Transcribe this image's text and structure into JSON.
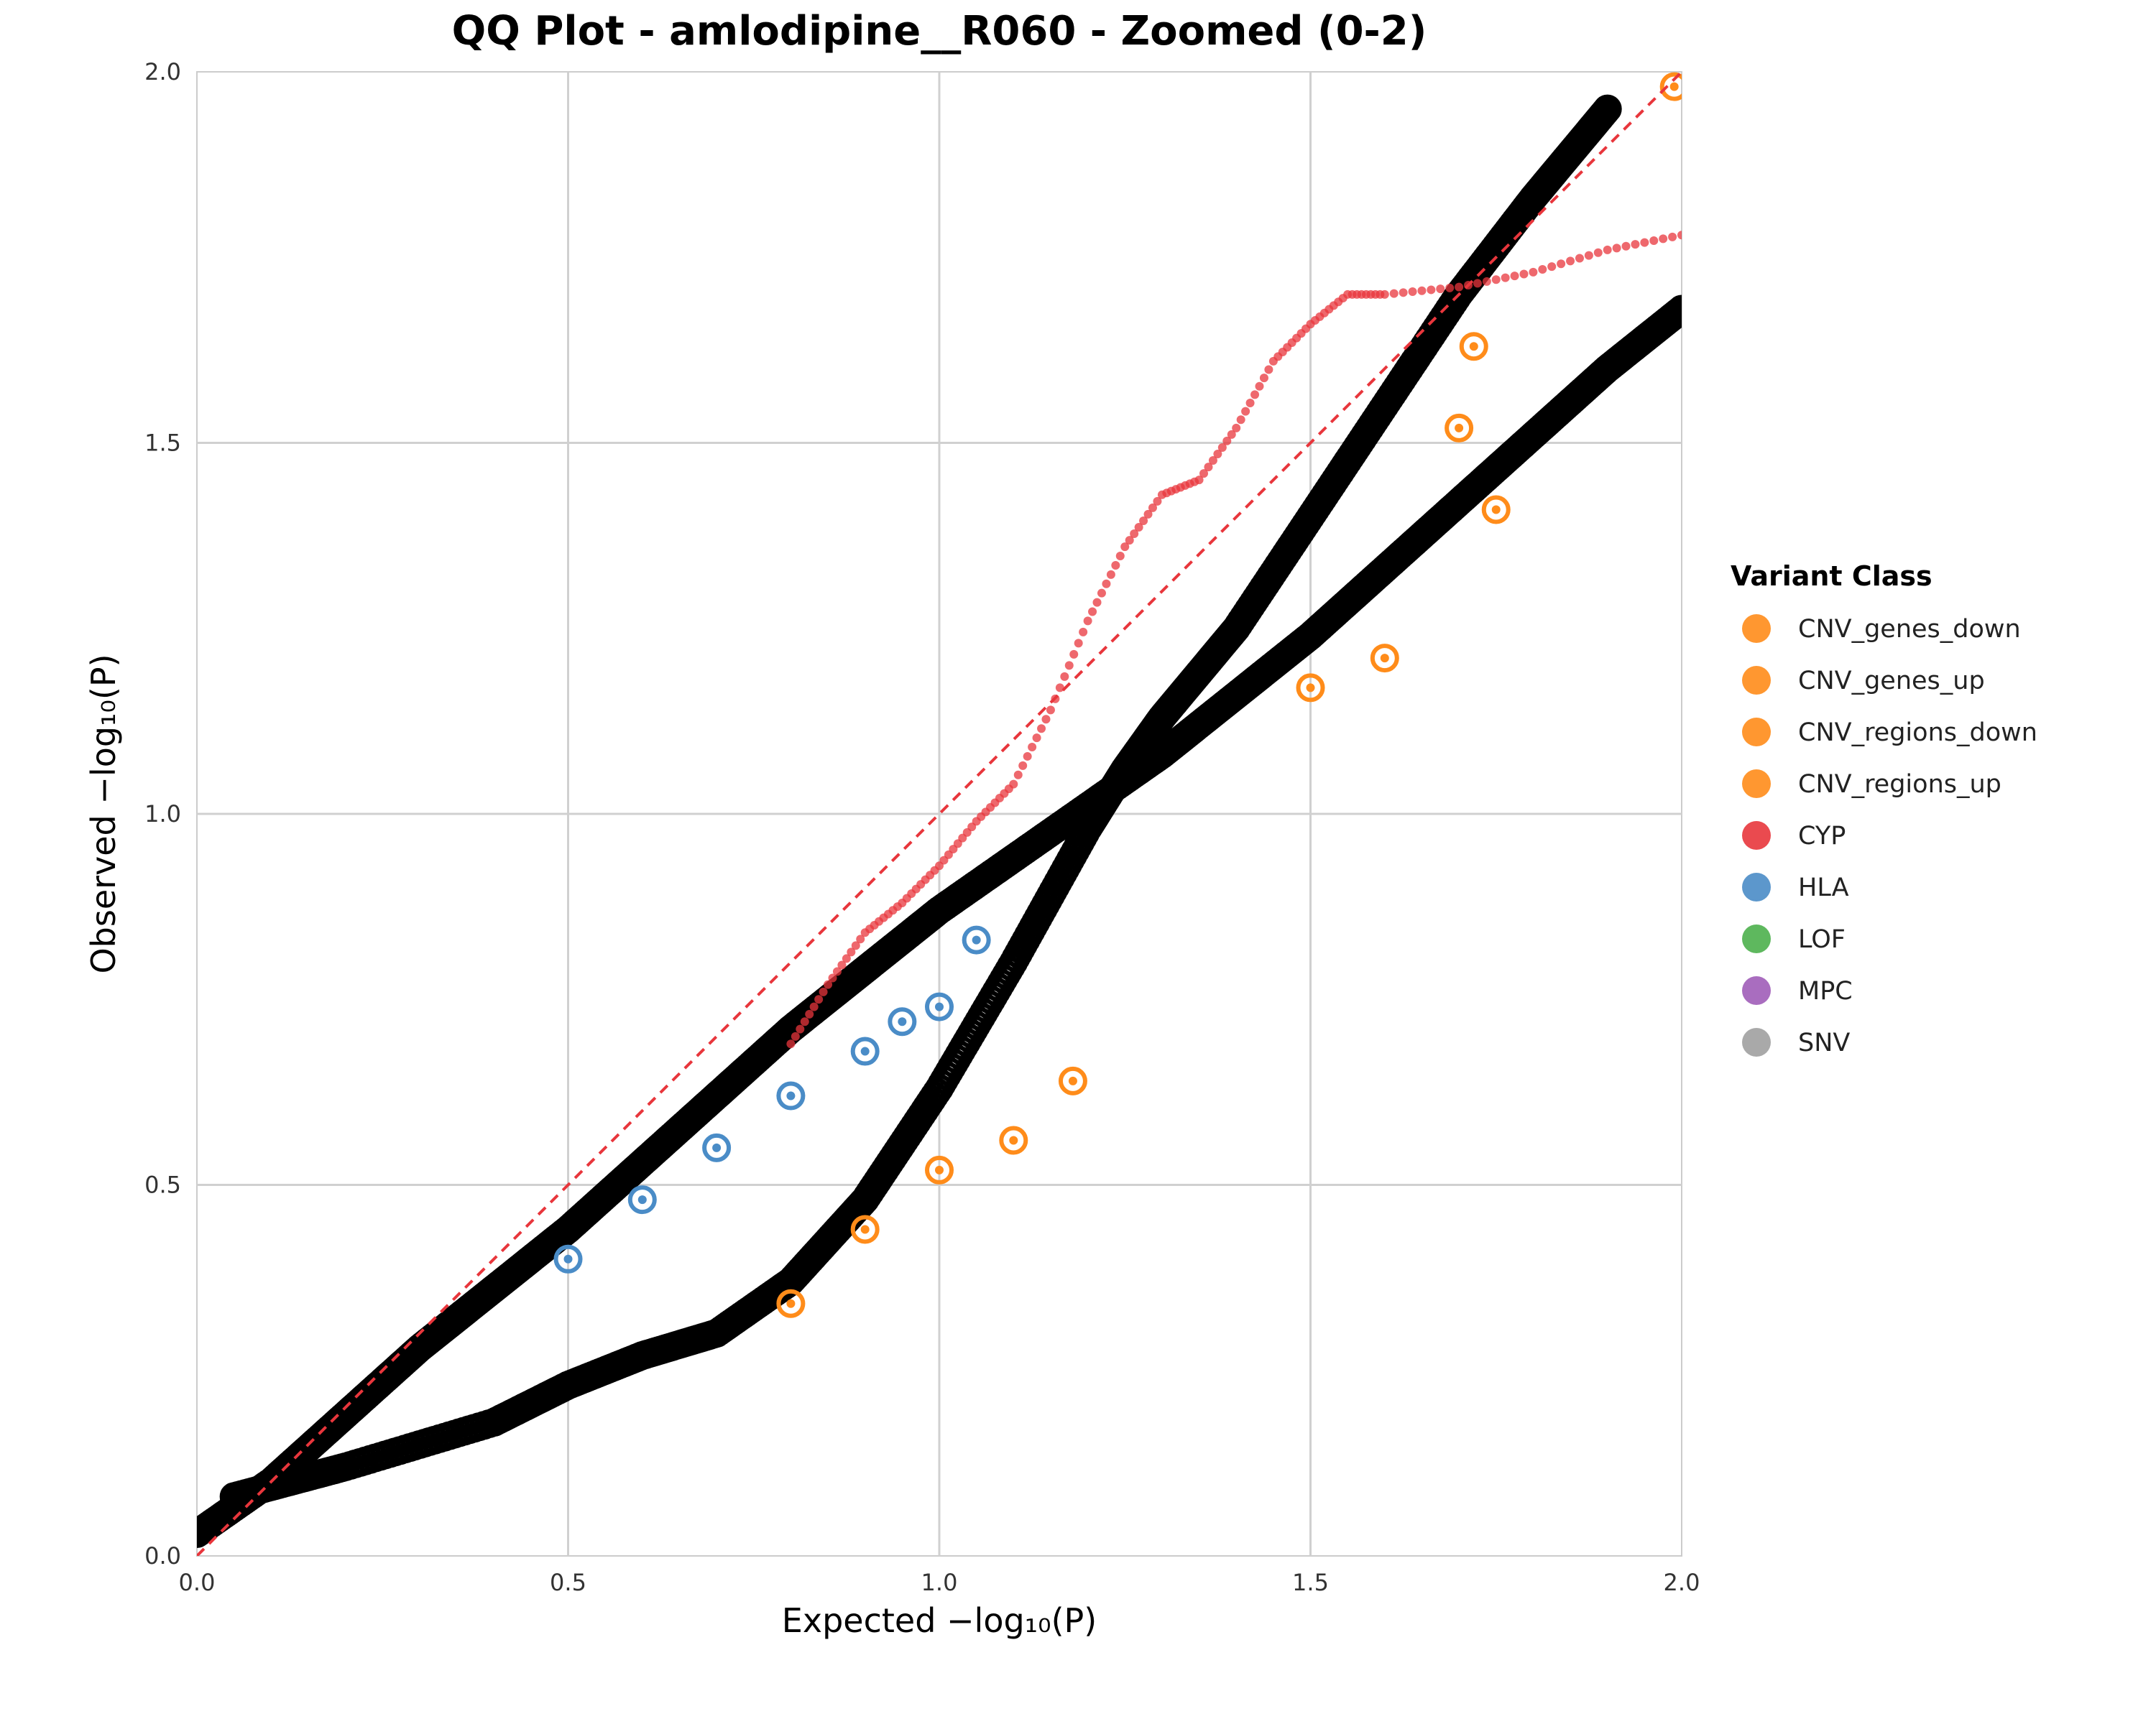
{
  "chart_data": {
    "type": "scatter",
    "title": "QQ Plot - amlodipine__R060 - Zoomed (0-2)",
    "xlabel": "Expected −log₁₀(P)",
    "ylabel": "Observed −log₁₀(P)",
    "xlim": [
      0,
      2
    ],
    "ylim": [
      0,
      2
    ],
    "x_ticks": [
      "0.0",
      "0.5",
      "1.0",
      "1.5",
      "2.0"
    ],
    "y_ticks": [
      "0.0",
      "0.5",
      "1.0",
      "1.5",
      "2.0"
    ],
    "grid": true,
    "reference_line": {
      "slope": 1,
      "color": "#e8363c",
      "style": "dashed"
    },
    "legend": {
      "title": "Variant Class",
      "placement": "right",
      "entries": [
        {
          "label": "CNV_genes_down",
          "color": "#ff8c1a"
        },
        {
          "label": "CNV_genes_up",
          "color": "#ff8c1a"
        },
        {
          "label": "CNV_regions_down",
          "color": "#ff8c1a"
        },
        {
          "label": "CNV_regions_up",
          "color": "#ff8c1a"
        },
        {
          "label": "CYP",
          "color": "#e8363c"
        },
        {
          "label": "HLA",
          "color": "#4a8cc7"
        },
        {
          "label": "LOF",
          "color": "#4cb04c"
        },
        {
          "label": "MPC",
          "color": "#a05db8"
        },
        {
          "label": "SNV",
          "color": "#a0a0a0"
        }
      ]
    },
    "series": [
      {
        "name": "SNV",
        "color": "#000000",
        "x": [
          0,
          0.1,
          0.2,
          0.3,
          0.4,
          0.5,
          0.6,
          0.7,
          0.8,
          0.9,
          1.0,
          1.1,
          1.2,
          1.3,
          1.4,
          1.5,
          1.6,
          1.7,
          1.8,
          1.9,
          2.0
        ],
        "y": [
          0.03,
          0.1,
          0.19,
          0.28,
          0.36,
          0.44,
          0.53,
          0.62,
          0.71,
          0.79,
          0.87,
          0.94,
          1.01,
          1.08,
          1.16,
          1.24,
          1.33,
          1.42,
          1.51,
          1.6,
          1.68
        ]
      },
      {
        "name": "SNV",
        "color": "#000000",
        "x": [
          0.05,
          0.2,
          0.4,
          0.5,
          0.6,
          0.7,
          0.8,
          0.9,
          1.0,
          1.1,
          1.2,
          1.25,
          1.3,
          1.4,
          1.5,
          1.6,
          1.7,
          1.8,
          1.9
        ],
        "y": [
          0.08,
          0.12,
          0.18,
          0.23,
          0.27,
          0.3,
          0.37,
          0.48,
          0.63,
          0.8,
          0.98,
          1.06,
          1.13,
          1.25,
          1.4,
          1.55,
          1.7,
          1.83,
          1.95
        ]
      },
      {
        "name": "CYP",
        "color": "#e8363c",
        "x": [
          0.8,
          0.85,
          0.9,
          0.95,
          1.0,
          1.05,
          1.1,
          1.15,
          1.2,
          1.25,
          1.3,
          1.35,
          1.4,
          1.45,
          1.5,
          1.55,
          1.6,
          1.7,
          1.8,
          1.9,
          2.0
        ],
        "y": [
          0.69,
          0.77,
          0.84,
          0.88,
          0.93,
          0.99,
          1.04,
          1.14,
          1.26,
          1.36,
          1.43,
          1.45,
          1.52,
          1.61,
          1.66,
          1.7,
          1.7,
          1.71,
          1.73,
          1.76,
          1.78
        ]
      },
      {
        "name": "HLA",
        "color": "#4a8cc7",
        "x": [
          0.5,
          0.6,
          0.7,
          0.8,
          0.9,
          0.95,
          1.0,
          1.05
        ],
        "y": [
          0.4,
          0.48,
          0.55,
          0.62,
          0.68,
          0.72,
          0.74,
          0.83
        ]
      },
      {
        "name": "CNV_regions_down",
        "color": "#ff8c1a",
        "x": [
          0.8,
          0.9,
          1.0,
          1.1,
          1.18,
          1.5,
          1.6,
          1.7,
          1.72,
          1.75,
          1.99
        ],
        "y": [
          0.34,
          0.44,
          0.52,
          0.56,
          0.64,
          1.17,
          1.21,
          1.52,
          1.63,
          1.41,
          1.98
        ]
      }
    ]
  }
}
